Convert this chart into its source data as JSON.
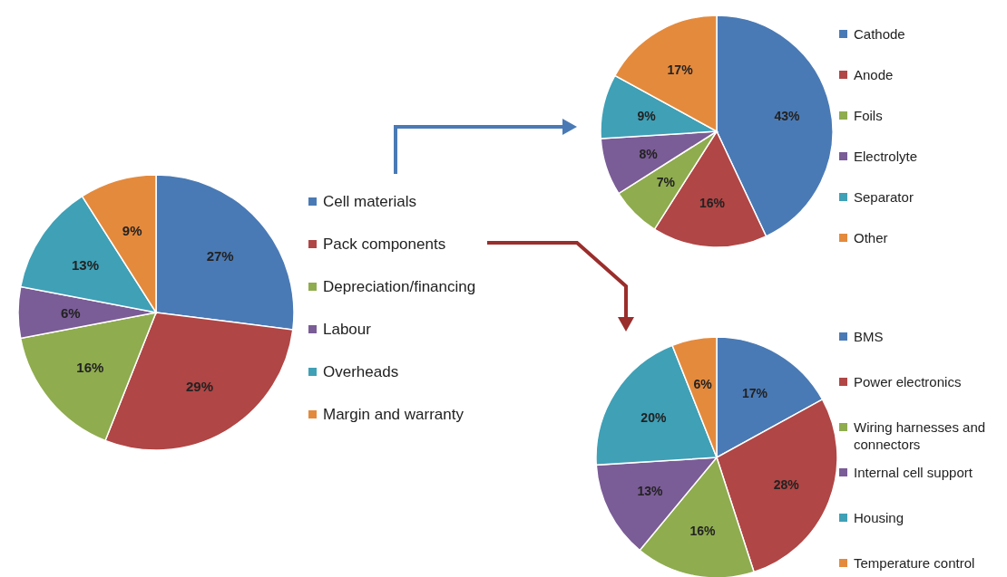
{
  "chart_data": [
    {
      "type": "pie",
      "categories": [
        "Cell materials",
        "Pack components",
        "Depreciation/financing",
        "Labour",
        "Overheads",
        "Margin and warranty"
      ],
      "values": [
        27,
        29,
        16,
        6,
        13,
        9
      ],
      "value_labels": [
        "27%",
        "29%",
        "16%",
        "6%",
        "13%",
        "9%"
      ],
      "colors": [
        "#4a7ab5",
        "#b04645",
        "#8fac4f",
        "#7a5c96",
        "#3fa0b6",
        "#e48a3d"
      ],
      "legend": "right"
    },
    {
      "type": "pie",
      "categories": [
        "Cathode",
        "Anode",
        "Foils",
        "Electrolyte",
        "Separator",
        "Other"
      ],
      "values": [
        43,
        16,
        7,
        8,
        9,
        17
      ],
      "value_labels": [
        "43%",
        "16%",
        "7%",
        "8%",
        "9%",
        "17%"
      ],
      "colors": [
        "#4a7ab5",
        "#b04645",
        "#8fac4f",
        "#7a5c96",
        "#3fa0b6",
        "#e48a3d"
      ],
      "legend": "right"
    },
    {
      "type": "pie",
      "categories": [
        "BMS",
        "Power electronics",
        "Wiring harnesses and connectors",
        "Internal cell support",
        "Housing",
        "Temperature control"
      ],
      "values": [
        17,
        28,
        16,
        13,
        20,
        6
      ],
      "value_labels": [
        "17%",
        "28%",
        "16%",
        "13%",
        "20%",
        "6%"
      ],
      "colors": [
        "#4a7ab5",
        "#b04645",
        "#8fac4f",
        "#7a5c96",
        "#3fa0b6",
        "#e48a3d"
      ],
      "legend": "right"
    }
  ]
}
